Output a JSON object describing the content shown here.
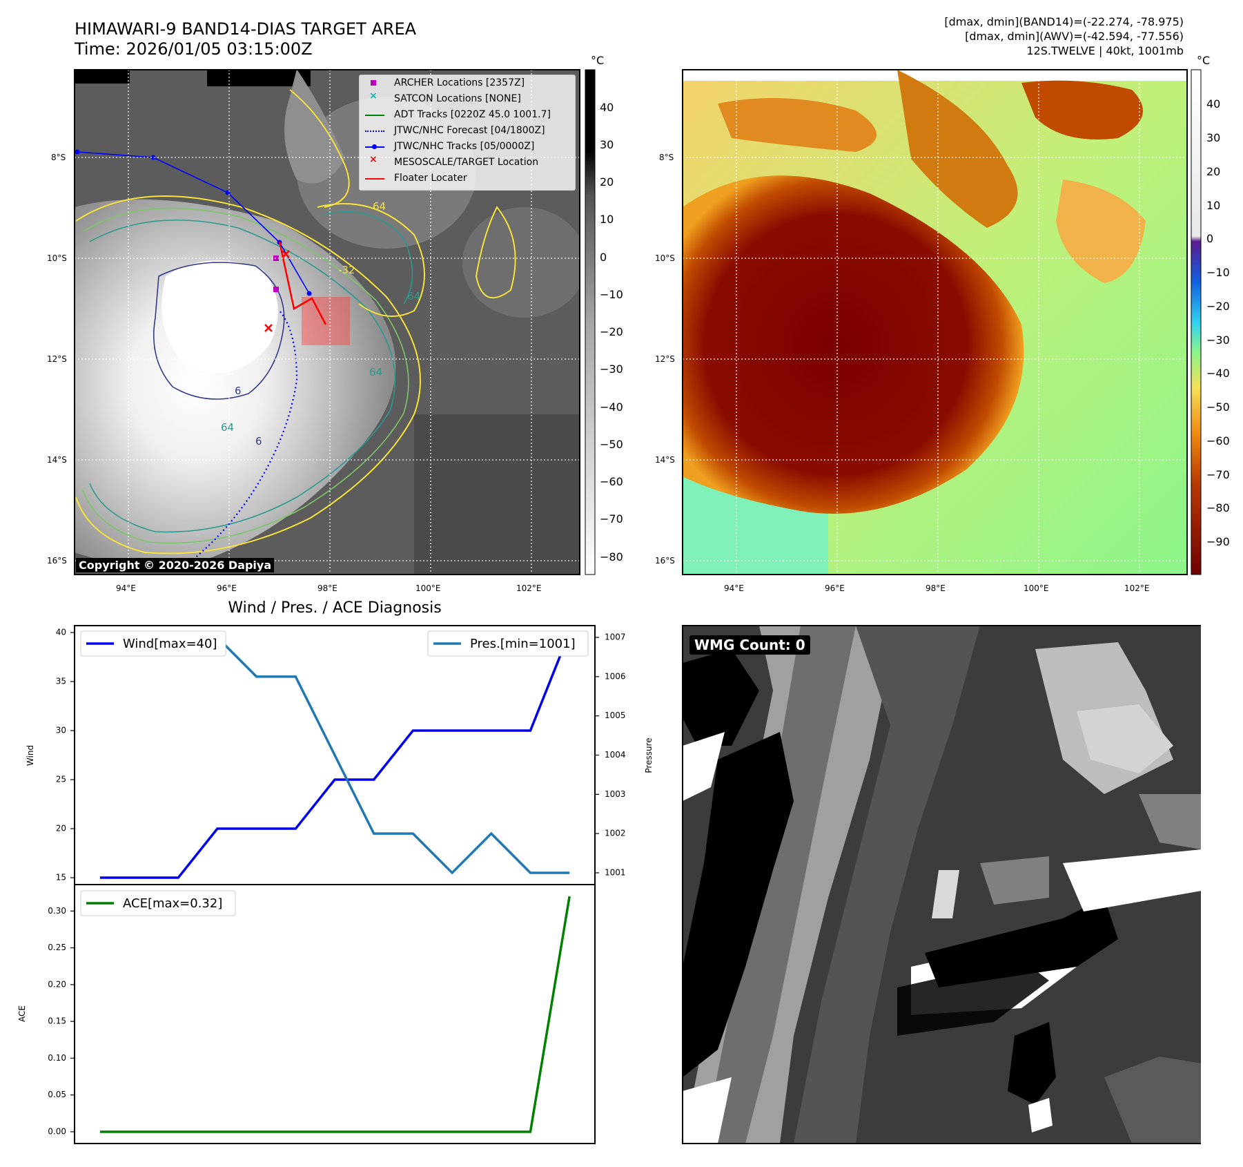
{
  "colors": {
    "ir_background": "#5a5a5a",
    "cloud_white": "#f2f2f2",
    "contour_yellow": "#f5e33a",
    "contour_teal": "#2a9a8e",
    "contour_navy": "#323a8a",
    "track_blue": "#0000ff",
    "forecast_blue": "#0000ff",
    "archer_magenta": "#c000c0",
    "floater_red": "#ff0000",
    "wind_blue": "#0000ee",
    "pres_blue": "#1f77b4",
    "ace_green": "#008000",
    "awv_dark_red": "#7a0a00",
    "awv_green": "#8cf58a"
  },
  "panel_ir": {
    "title_line1": "HIMAWARI-9 BAND14-DIAS TARGET AREA",
    "title_line2": "Time: 2026/01/05 03:15:00Z",
    "copyright": "Copyright © 2020-2026 Dapiya",
    "legend": [
      {
        "label": "ARCHER Locations [2357Z]",
        "marker": "square",
        "color": "#c000c0"
      },
      {
        "label": "SATCON Locations [NONE]",
        "marker": "x",
        "color": "#00bfbf"
      },
      {
        "label": "ADT Tracks [0220Z 45.0 1001.7]",
        "marker": "line",
        "color": "#008000"
      },
      {
        "label": "JTWC/NHC Forecast [04/1800Z]",
        "marker": "dotted",
        "color": "#0000ff"
      },
      {
        "label": "JTWC/NHC Tracks [05/0000Z]",
        "marker": "line-dot",
        "color": "#0000ff"
      },
      {
        "label": "MESOSCALE/TARGET Location",
        "marker": "x",
        "color": "#ff0000"
      },
      {
        "label": "Floater Locater",
        "marker": "line",
        "color": "#ff0000"
      }
    ],
    "contour_labels": [
      "64",
      "6",
      "64",
      "64",
      "-32",
      "64",
      "6"
    ],
    "colorbar": {
      "unit": "°C",
      "ticks": [
        "40",
        "30",
        "20",
        "10",
        "0",
        "−10",
        "−20",
        "−30",
        "−40",
        "−50",
        "−60",
        "−70",
        "−80"
      ]
    }
  },
  "panel_awv": {
    "info_line1": "[dmax, dmin](BAND14)=(-22.274, -78.975)",
    "info_line2": "[dmax, dmin](AWV)=(-42.594, -77.556)",
    "info_line3": "12S.TWELVE | 40kt, 1001mb",
    "colorbar": {
      "unit": "°C",
      "ticks": [
        "40",
        "30",
        "20",
        "10",
        "0",
        "−10",
        "−20",
        "−30",
        "−40",
        "−50",
        "−60",
        "−70",
        "−80",
        "−90"
      ]
    }
  },
  "map_axes": {
    "x_ticks": [
      "94°E",
      "96°E",
      "98°E",
      "100°E",
      "102°E"
    ],
    "y_ticks": [
      "8°S",
      "10°S",
      "12°S",
      "14°S",
      "16°S"
    ]
  },
  "panel_wmg": {
    "label": "WMG Count: 0"
  },
  "chart_data": [
    {
      "type": "line",
      "title": "Wind / Pres. / ACE Diagnosis",
      "x": [
        0,
        1,
        2,
        3,
        4,
        5,
        6,
        7,
        8,
        9,
        10,
        11,
        12
      ],
      "series": [
        {
          "name": "Wind[max=40]",
          "axis": "left",
          "values": [
            15,
            15,
            15,
            20,
            20,
            20,
            25,
            25,
            30,
            30,
            30,
            30,
            40
          ]
        },
        {
          "name": "Pres.[min=1001]",
          "axis": "right",
          "values": [
            1007,
            1007,
            1007,
            1007,
            1006,
            1006,
            1004,
            1002,
            1002,
            1001,
            1002,
            1001,
            1001
          ]
        }
      ],
      "ylabel": "Wind",
      "ylabel_right": "Pressure",
      "ylim": [
        14.3,
        40.7
      ],
      "ylim_right": [
        1000.7,
        1007.3
      ],
      "yticks": [
        15,
        20,
        25,
        30,
        35,
        40
      ],
      "yticks_right": [
        1001,
        1002,
        1003,
        1004,
        1005,
        1006,
        1007
      ]
    },
    {
      "type": "line",
      "x": [
        0,
        1,
        2,
        3,
        4,
        5,
        6,
        7,
        8,
        9,
        10,
        11,
        12
      ],
      "series": [
        {
          "name": "ACE[max=0.32]",
          "values": [
            0,
            0,
            0,
            0,
            0,
            0,
            0,
            0,
            0,
            0,
            0,
            0,
            0.32
          ]
        }
      ],
      "ylabel": "ACE",
      "ylim": [
        -0.016,
        0.336
      ],
      "yticks": [
        0.0,
        0.05,
        0.1,
        0.15,
        0.2,
        0.25,
        0.3
      ]
    }
  ]
}
